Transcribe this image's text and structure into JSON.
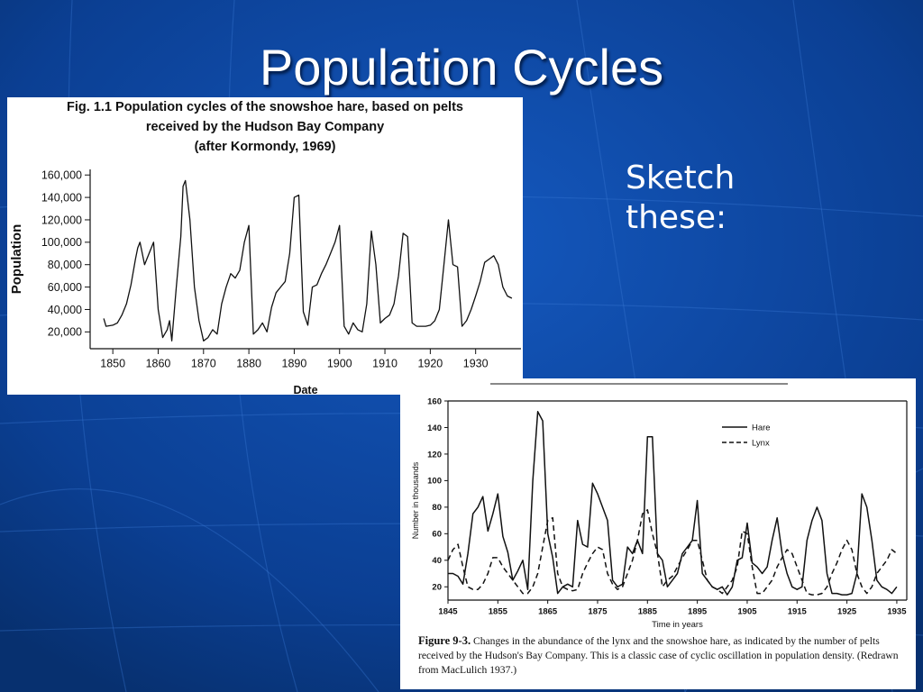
{
  "slide": {
    "title": "Population Cycles",
    "prompt_line1": "Sketch",
    "prompt_line2": "these:"
  },
  "colors": {
    "background": "#0b3f93",
    "title": "#ffffff",
    "ink": "#111111"
  },
  "chart_data": [
    {
      "type": "line",
      "title_lines": [
        "Fig. 1.1  Population cycles of the snowshoe hare, based on pelts",
        "received by the Hudson Bay Company",
        "(after Kormondy, 1969)"
      ],
      "xlabel": "Date",
      "ylabel": "Population",
      "xlim": [
        1845,
        1940
      ],
      "ylim": [
        5000,
        165000
      ],
      "x_ticks": [
        1850,
        1860,
        1870,
        1880,
        1890,
        1900,
        1910,
        1920,
        1930
      ],
      "y_ticks": [
        20000,
        40000,
        60000,
        80000,
        100000,
        120000,
        140000,
        160000
      ],
      "y_tick_labels": [
        "20,000",
        "40,000",
        "60,000",
        "80,000",
        "100,000",
        "120,000",
        "140,000",
        "160,000"
      ],
      "grid": false,
      "series": [
        {
          "x": [
            1848,
            1848.5,
            1850,
            1851,
            1852,
            1853,
            1854,
            1855,
            1855.5,
            1856,
            1857,
            1858,
            1859,
            1860,
            1861,
            1862,
            1862.5,
            1863,
            1864,
            1865,
            1865.5,
            1866,
            1867,
            1868,
            1869,
            1870,
            1871,
            1872,
            1873,
            1874,
            1875,
            1876,
            1877,
            1878,
            1879,
            1880,
            1881,
            1882,
            1883,
            1884,
            1885,
            1886,
            1887,
            1888,
            1889,
            1890,
            1891,
            1892,
            1893,
            1894,
            1895,
            1896,
            1897,
            1898,
            1899,
            1900,
            1901,
            1902,
            1903,
            1904,
            1905,
            1906,
            1907,
            1908,
            1909,
            1910,
            1911,
            1912,
            1913,
            1914,
            1915,
            1916,
            1917,
            1918,
            1919,
            1920,
            1921,
            1922,
            1923,
            1924,
            1925,
            1926,
            1927,
            1928,
            1929,
            1930,
            1931,
            1932,
            1933,
            1934,
            1935,
            1936,
            1937,
            1938
          ],
          "y": [
            32000,
            25000,
            26000,
            28000,
            35000,
            45000,
            62000,
            85000,
            95000,
            100000,
            80000,
            90000,
            100000,
            40000,
            15000,
            22000,
            30000,
            12000,
            60000,
            105000,
            150000,
            155000,
            120000,
            60000,
            30000,
            12000,
            15000,
            22000,
            18000,
            45000,
            60000,
            72000,
            68000,
            75000,
            100000,
            115000,
            18000,
            22000,
            28000,
            20000,
            42000,
            55000,
            60000,
            65000,
            90000,
            140000,
            142000,
            38000,
            26000,
            60000,
            62000,
            72000,
            80000,
            90000,
            100000,
            115000,
            25000,
            18000,
            28000,
            22000,
            20000,
            45000,
            110000,
            80000,
            28000,
            32000,
            35000,
            45000,
            70000,
            108000,
            105000,
            28000,
            25000,
            25000,
            25000,
            26000,
            30000,
            40000,
            80000,
            120000,
            80000,
            78000,
            25000,
            30000,
            40000,
            52000,
            65000,
            82000,
            85000,
            88000,
            80000,
            60000,
            52000,
            50000
          ]
        }
      ]
    },
    {
      "type": "line",
      "xlabel": "Time in years",
      "ylabel": "Number in thousands",
      "xlim": [
        1845,
        1937
      ],
      "ylim": [
        10,
        160
      ],
      "x_ticks": [
        1845,
        1855,
        1865,
        1875,
        1885,
        1895,
        1905,
        1915,
        1925,
        1935
      ],
      "y_ticks": [
        20,
        40,
        60,
        80,
        100,
        120,
        140,
        160
      ],
      "grid": false,
      "legend_position": "top-right",
      "series": [
        {
          "name": "Hare",
          "style": "solid",
          "x": [
            1845,
            1846,
            1847,
            1848,
            1849,
            1850,
            1851,
            1852,
            1853,
            1854,
            1855,
            1856,
            1857,
            1858,
            1859,
            1860,
            1861,
            1862,
            1863,
            1864,
            1865,
            1866,
            1867,
            1868,
            1869,
            1870,
            1871,
            1872,
            1873,
            1874,
            1875,
            1876,
            1877,
            1878,
            1879,
            1880,
            1881,
            1882,
            1883,
            1884,
            1885,
            1886,
            1887,
            1888,
            1889,
            1890,
            1891,
            1892,
            1893,
            1894,
            1895,
            1896,
            1897,
            1898,
            1899,
            1900,
            1901,
            1902,
            1903,
            1904,
            1905,
            1906,
            1907,
            1908,
            1909,
            1910,
            1911,
            1912,
            1913,
            1914,
            1915,
            1916,
            1917,
            1918,
            1919,
            1920,
            1921,
            1922,
            1923,
            1924,
            1925,
            1926,
            1927,
            1928,
            1929,
            1930,
            1931,
            1932,
            1933,
            1934,
            1935
          ],
          "y": [
            30,
            30,
            28,
            22,
            45,
            75,
            80,
            88,
            62,
            75,
            90,
            58,
            46,
            25,
            32,
            40,
            18,
            100,
            152,
            145,
            60,
            42,
            15,
            20,
            22,
            20,
            70,
            52,
            50,
            98,
            90,
            80,
            70,
            25,
            20,
            22,
            50,
            45,
            55,
            45,
            133,
            133,
            45,
            40,
            20,
            25,
            30,
            45,
            50,
            55,
            85,
            30,
            25,
            20,
            18,
            20,
            14,
            20,
            40,
            42,
            68,
            38,
            35,
            30,
            35,
            55,
            72,
            45,
            30,
            20,
            18,
            20,
            55,
            70,
            80,
            70,
            30,
            15,
            15,
            14,
            14,
            15,
            30,
            90,
            80,
            55,
            25,
            20,
            18,
            15,
            20
          ]
        },
        {
          "name": "Lynx",
          "style": "dashed",
          "x": [
            1845,
            1846,
            1847,
            1848,
            1849,
            1850,
            1851,
            1852,
            1853,
            1854,
            1855,
            1856,
            1857,
            1858,
            1859,
            1860,
            1861,
            1862,
            1863,
            1864,
            1865,
            1866,
            1867,
            1868,
            1869,
            1870,
            1871,
            1872,
            1873,
            1874,
            1875,
            1876,
            1877,
            1878,
            1879,
            1880,
            1881,
            1882,
            1883,
            1884,
            1885,
            1886,
            1887,
            1888,
            1889,
            1890,
            1891,
            1892,
            1893,
            1894,
            1895,
            1896,
            1897,
            1898,
            1899,
            1900,
            1901,
            1902,
            1903,
            1904,
            1905,
            1906,
            1907,
            1908,
            1909,
            1910,
            1911,
            1912,
            1913,
            1914,
            1915,
            1916,
            1917,
            1918,
            1919,
            1920,
            1921,
            1922,
            1923,
            1924,
            1925,
            1926,
            1927,
            1928,
            1929,
            1930,
            1931,
            1932,
            1933,
            1934,
            1935
          ],
          "y": [
            40,
            48,
            52,
            35,
            20,
            18,
            18,
            22,
            30,
            42,
            42,
            35,
            30,
            25,
            20,
            15,
            15,
            20,
            30,
            50,
            70,
            72,
            30,
            20,
            18,
            17,
            18,
            30,
            38,
            45,
            50,
            48,
            30,
            22,
            18,
            20,
            30,
            40,
            55,
            75,
            78,
            60,
            45,
            20,
            25,
            28,
            35,
            42,
            48,
            55,
            55,
            40,
            25,
            20,
            18,
            15,
            20,
            25,
            35,
            62,
            60,
            35,
            15,
            15,
            20,
            25,
            35,
            42,
            48,
            45,
            35,
            25,
            15,
            14,
            14,
            15,
            20,
            30,
            38,
            48,
            55,
            48,
            30,
            20,
            15,
            20,
            30,
            35,
            40,
            48,
            45
          ]
        }
      ],
      "caption_label": "Figure 9-3.",
      "caption_text": "Changes in the abundance of the lynx and the snowshoe hare, as indicated by the number of pelts received by the Hudson's Bay Company. This is a classic case of cyclic oscillation in population density. (Redrawn from MacLulich 1937.)"
    }
  ]
}
